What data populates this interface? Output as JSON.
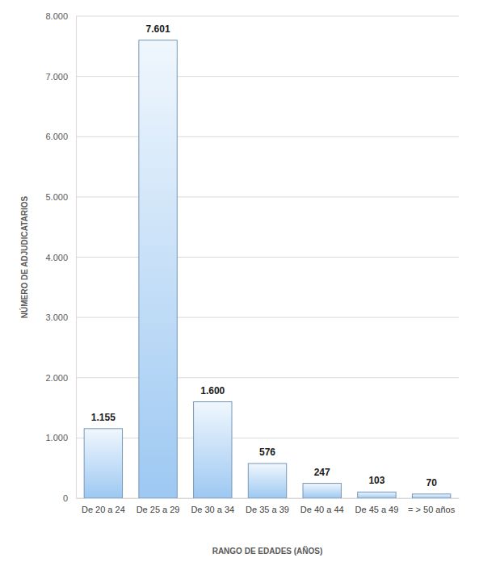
{
  "chart_data": {
    "type": "bar",
    "x_label": "RANGO DE EDADES (AÑOS)",
    "y_label": "NÚMERO DE ADJUDICATARIOS",
    "categories": [
      "De 20 a 24",
      "De 25 a 29",
      "De 30 a 34",
      "De 35 a 39",
      "De 40 a 44",
      "De 45 a 49",
      "= > 50 años"
    ],
    "values": [
      1155,
      7601,
      1600,
      576,
      247,
      103,
      70
    ],
    "value_labels": [
      "1.155",
      "7.601",
      "1.600",
      "576",
      "247",
      "103",
      "70"
    ],
    "color": "#9dc8f2",
    "ylim": [
      0,
      8000
    ],
    "yticks": [
      0,
      {
        "value": 1000,
        "label": "1.000"
      },
      {
        "value": 2000,
        "label": "2.000"
      },
      {
        "value": 3000,
        "label": "3.000"
      },
      {
        "value": 4000,
        "label": "4.000"
      },
      {
        "value": 5000,
        "label": "5.000"
      },
      {
        "value": 6000,
        "label": "6.000"
      },
      {
        "value": 7000,
        "label": "7.000"
      },
      {
        "value": 8000,
        "label": "8.000"
      }
    ],
    "grid": true,
    "data_labels": true
  }
}
